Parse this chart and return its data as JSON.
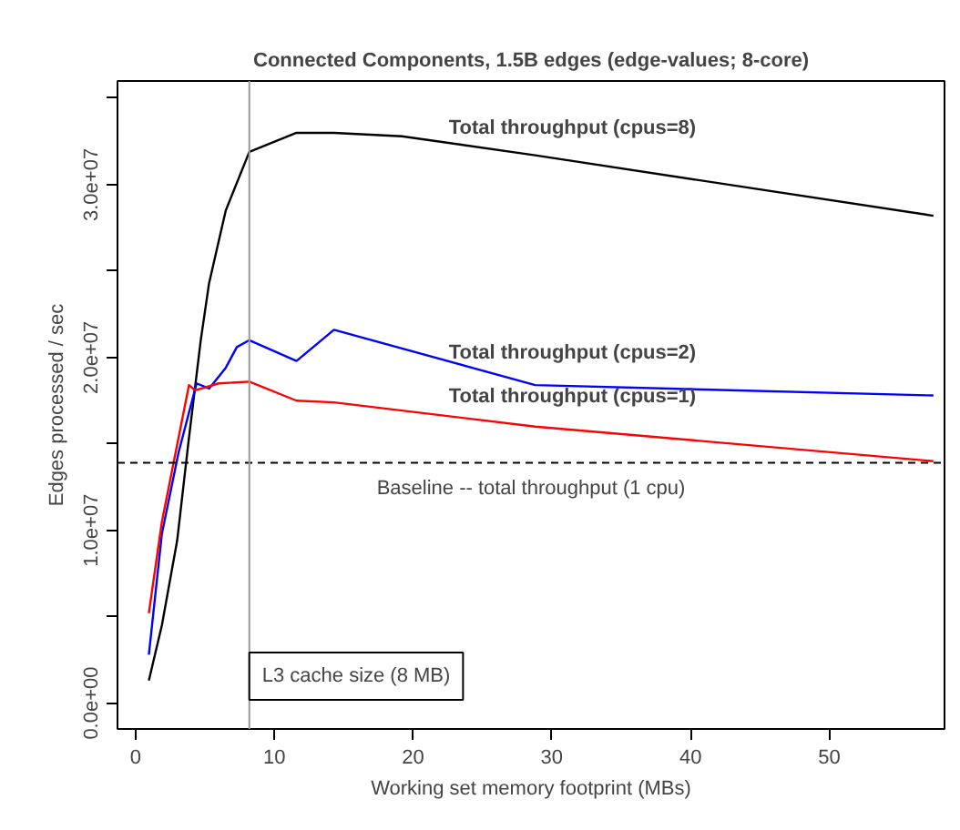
{
  "chart_data": {
    "type": "line",
    "title": "Connected Components, 1.5B edges (edge-values; 8-core)",
    "xlabel": "Working set memory footprint (MBs)",
    "ylabel": "Edges processed / sec",
    "xlim": [
      -1.3,
      58.3
    ],
    "ylim": [
      -1500000,
      36000000
    ],
    "xticks": [
      0,
      10,
      20,
      30,
      40,
      50
    ],
    "yticks": [
      {
        "value": 0,
        "label": "0.0e+00"
      },
      {
        "value": 5000000,
        "label": null
      },
      {
        "value": 10000000,
        "label": "1.0e+07"
      },
      {
        "value": 15000000,
        "label": null
      },
      {
        "value": 20000000,
        "label": "2.0e+07"
      },
      {
        "value": 25000000,
        "label": null
      },
      {
        "value": 30000000,
        "label": "3.0e+07"
      },
      {
        "value": 35000000,
        "label": null
      }
    ],
    "grid": false,
    "legend": false,
    "marker": "none",
    "line_style": "solid",
    "series": [
      {
        "name": "Total throughput (cpus=8)",
        "color": "#000000",
        "x": [
          0.96,
          1.9,
          3.0,
          3.8,
          4.7,
          5.3,
          6.5,
          8.2,
          11.6,
          14.3,
          19.2,
          28.8,
          57.5
        ],
        "values": [
          1300000,
          4500000,
          9400000,
          15000000,
          21000000,
          24300000,
          28500000,
          31900000,
          33000000,
          33000000,
          32800000,
          31700000,
          28200000
        ]
      },
      {
        "name": "Total throughput (cpus=2)",
        "color": "#0000ff",
        "x": [
          0.96,
          1.9,
          3.1,
          4.4,
          5.3,
          6.5,
          7.3,
          8.2,
          11.6,
          14.3,
          28.8,
          57.5
        ],
        "values": [
          2800000,
          9800000,
          14500000,
          18500000,
          18200000,
          19400000,
          20600000,
          21000000,
          19800000,
          21600000,
          18400000,
          17800000
        ]
      },
      {
        "name": "Total throughput (cpus=1)",
        "color": "#ff0000",
        "x": [
          0.96,
          1.9,
          3.85,
          4.3,
          6.0,
          8.2,
          11.6,
          14.3,
          28.8,
          57.5
        ],
        "values": [
          5200000,
          10500000,
          18400000,
          18100000,
          18500000,
          18600000,
          17500000,
          17400000,
          16000000,
          14000000
        ]
      }
    ],
    "ref_lines": [
      {
        "axis": "y",
        "value": 13900000,
        "label": "Baseline -- total throughput (1 cpu)",
        "color": "#000000",
        "line_style": "dashed"
      },
      {
        "axis": "x",
        "value": 8.2,
        "label": "L3 cache size (8 MB)",
        "color": "#999999",
        "line_style": "solid"
      }
    ]
  }
}
